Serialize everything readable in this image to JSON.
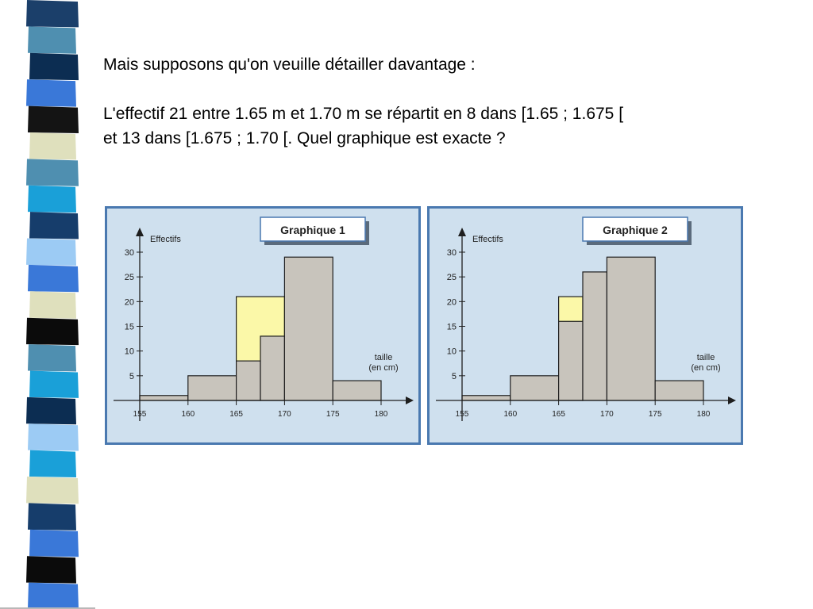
{
  "slide": {
    "line1": "Mais supposons qu'on veuille détailler davantage :",
    "line2": "L'effectif 21 entre 1.65 m et 1.70 m se répartit en 8 dans [1.65 ; 1.675 [",
    "line3": "et 13 dans [1.675 ; 1.70 [. Quel graphique est exacte ?"
  },
  "colors": {
    "panel_bg": "#cfe0ee",
    "panel_border": "#4a79b0",
    "bar_fill": "#c8c4bc",
    "highlight_fill": "#fbf8a8",
    "bar_stroke": "#1e1e1e"
  },
  "chart_data": [
    {
      "type": "bar",
      "title": "Graphique 1",
      "ylabel": "Effectifs",
      "xlabel": "taille",
      "xlabel_unit": "(en cm)",
      "xlim": [
        155,
        180
      ],
      "ylim": [
        0,
        30
      ],
      "x_ticks": [
        155,
        160,
        165,
        170,
        175,
        180
      ],
      "y_ticks": [
        5,
        10,
        15,
        20,
        25,
        30
      ],
      "bars": [
        {
          "x0": 155,
          "x1": 160,
          "value": 1
        },
        {
          "x0": 160,
          "x1": 165,
          "value": 5
        },
        {
          "x0": 165,
          "x1": 170,
          "value": 21,
          "highlight": true
        },
        {
          "x0": 165,
          "x1": 167.5,
          "value": 8
        },
        {
          "x0": 167.5,
          "x1": 170,
          "value": 13
        },
        {
          "x0": 170,
          "x1": 175,
          "value": 29
        },
        {
          "x0": 175,
          "x1": 180,
          "value": 4
        }
      ]
    },
    {
      "type": "bar",
      "title": "Graphique 2",
      "ylabel": "Effectifs",
      "xlabel": "taille",
      "xlabel_unit": "(en cm)",
      "xlim": [
        155,
        180
      ],
      "ylim": [
        0,
        30
      ],
      "x_ticks": [
        155,
        160,
        165,
        170,
        175,
        180
      ],
      "y_ticks": [
        5,
        10,
        15,
        20,
        25,
        30
      ],
      "bars": [
        {
          "x0": 155,
          "x1": 160,
          "value": 1
        },
        {
          "x0": 160,
          "x1": 165,
          "value": 5
        },
        {
          "x0": 165,
          "x1": 167.5,
          "value": 21,
          "highlight": true
        },
        {
          "x0": 165,
          "x1": 167.5,
          "value": 16
        },
        {
          "x0": 167.5,
          "x1": 170,
          "value": 26
        },
        {
          "x0": 170,
          "x1": 175,
          "value": 29
        },
        {
          "x0": 175,
          "x1": 180,
          "value": 4
        }
      ]
    }
  ]
}
